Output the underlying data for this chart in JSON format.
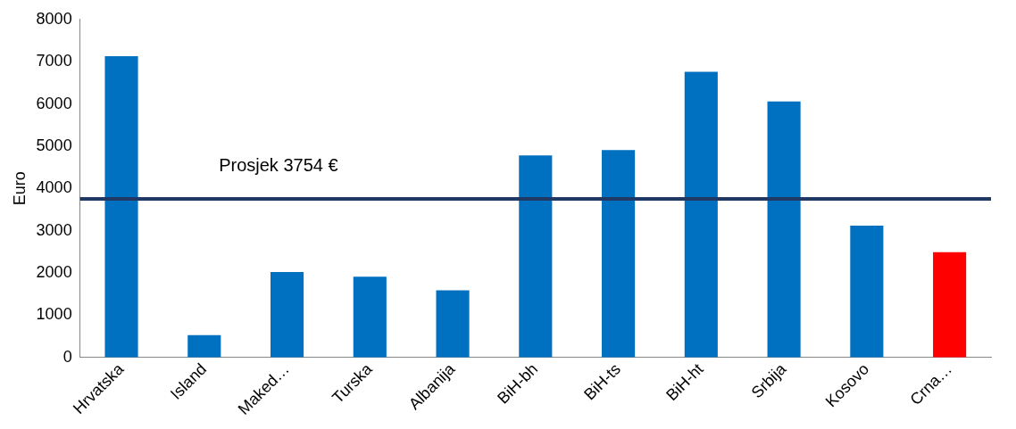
{
  "chart_data": {
    "type": "bar",
    "ylabel": "Euro",
    "categories": [
      "Hrvatska",
      "Island",
      "Maked…",
      "Turska",
      "Albanija",
      "BiH-bh",
      "BiH-ts",
      "BiH-ht",
      "Srbija",
      "Kosovo",
      "Crna…"
    ],
    "values": [
      7130,
      530,
      2020,
      1910,
      1590,
      4780,
      4910,
      6760,
      6060,
      3120,
      2490
    ],
    "colors": [
      "#0070c0",
      "#0070c0",
      "#0070c0",
      "#0070c0",
      "#0070c0",
      "#0070c0",
      "#0070c0",
      "#0070c0",
      "#0070c0",
      "#0070c0",
      "#ff0000"
    ],
    "ylim": [
      0,
      8000
    ],
    "yticks": [
      0,
      1000,
      2000,
      3000,
      4000,
      5000,
      6000,
      7000,
      8000
    ],
    "ref_lines": [
      {
        "axis": "y",
        "value": 3754,
        "label": "Prosjek 3754 €",
        "color": "#1f3864"
      }
    ],
    "grid": false,
    "legend": false
  }
}
